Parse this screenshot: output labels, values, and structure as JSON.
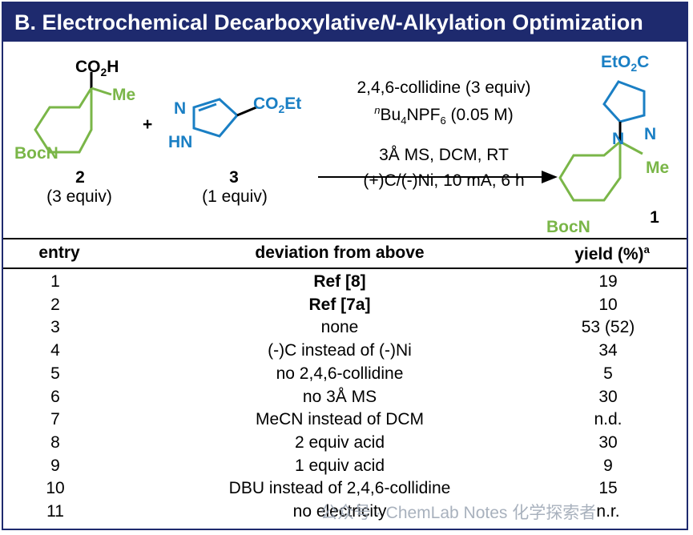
{
  "title": {
    "prefix": "B. Electrochemical Decarboxylative ",
    "italic": "N",
    "suffix": "-Alkylation Optimization"
  },
  "scheme": {
    "reagent2": {
      "co2h": "CO2H",
      "me": "Me",
      "boc": "BocN",
      "number": "2",
      "equiv": "(3 equiv)"
    },
    "plus": "+",
    "reagent3": {
      "n_top": "N",
      "hn": "HN",
      "co2et": "CO2Et",
      "number": "3",
      "equiv": "(1 equiv)"
    },
    "conditions": {
      "line1": "2,4,6-collidine (3 equiv)",
      "line2_sup": "n",
      "line2_a": "Bu",
      "line2_sub1": "4",
      "line2_b": "NPF",
      "line2_sub2": "6",
      "line2_c": " (0.05 M)",
      "line3": "3Å MS, DCM, RT",
      "line4": "(+)C/(-)Ni, 10 mA, 6 h"
    },
    "product": {
      "etoc": "EtO2C",
      "n1": "N",
      "n2": "N",
      "me": "Me",
      "boc": "BocN",
      "number": "1"
    }
  },
  "table": {
    "headers": {
      "entry": "entry",
      "deviation": "deviation from above",
      "yield": "yield (%)",
      "yield_sup": "a"
    },
    "rows": [
      {
        "entry": "1",
        "deviation": "Ref [8]",
        "yield": "19",
        "bold": true
      },
      {
        "entry": "2",
        "deviation": "Ref [7a]",
        "yield": "10",
        "bold": true
      },
      {
        "entry": "3",
        "deviation": "none",
        "yield": "53 (52)",
        "bold": false
      },
      {
        "entry": "4",
        "deviation": "(-)C instead of (-)Ni",
        "yield": "34",
        "bold": false
      },
      {
        "entry": "5",
        "deviation": "no 2,4,6-collidine",
        "yield": "5",
        "bold": false
      },
      {
        "entry": "6",
        "deviation": "no 3Å MS",
        "yield": "30",
        "bold": false
      },
      {
        "entry": "7",
        "deviation": "MeCN instead of DCM",
        "yield": "n.d.",
        "bold": false
      },
      {
        "entry": "8",
        "deviation": "2 equiv acid",
        "yield": "30",
        "bold": false
      },
      {
        "entry": "9",
        "deviation": "1 equiv acid",
        "yield": "9",
        "bold": false
      },
      {
        "entry": "10",
        "deviation": "DBU instead of 2,4,6-collidine",
        "yield": "15",
        "bold": false
      },
      {
        "entry": "11",
        "deviation": "no electricity",
        "yield": "n.r.",
        "bold": false
      }
    ]
  },
  "watermark": "公众号 · ChemLab Notes 化学探索者",
  "colors": {
    "title_bg": "#1e2a6e",
    "green": "#7ab648",
    "blue": "#1a7fc4"
  }
}
